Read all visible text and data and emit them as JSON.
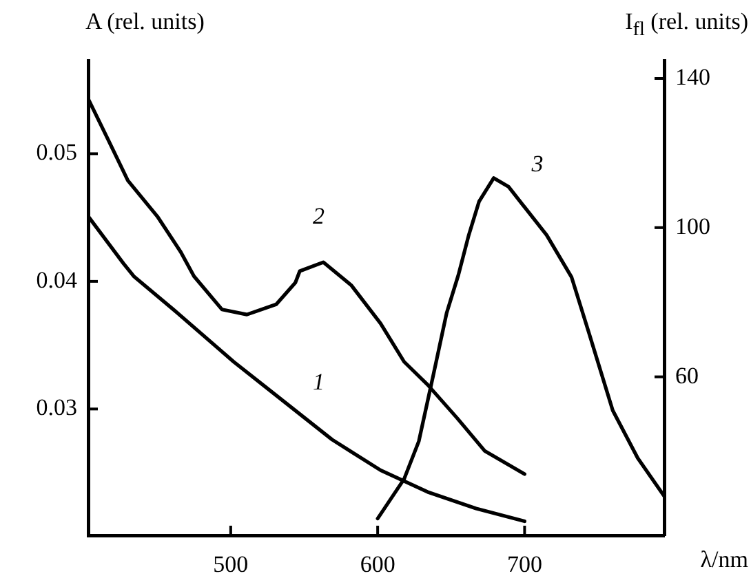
{
  "chart_data": {
    "type": "line",
    "xlabel": "λ/nm",
    "ylabel": "A (rel. units)",
    "y2label": "I$_{fl}$ (rel. units)",
    "xlim": [
      403,
      795
    ],
    "xticks": [
      500,
      600,
      700
    ],
    "ylim": [
      0.0201,
      0.0573
    ],
    "yticks": [
      0.03,
      0.04,
      0.05
    ],
    "y2lim": [
      17.5,
      144.8
    ],
    "y2ticks": [
      60,
      100,
      140
    ],
    "grid": false,
    "legend": false,
    "marker": "none",
    "line_style": "solid",
    "series": [
      {
        "name": "1",
        "color": "#000000",
        "x": [
          403,
          427,
          434,
          463,
          502,
          524,
          569,
          602,
          634,
          667,
          700
        ],
        "values": [
          0.0451,
          0.0414,
          0.0404,
          0.0376,
          0.0337,
          0.0317,
          0.0276,
          0.0252,
          0.0235,
          0.0222,
          0.0212
        ]
      },
      {
        "name": "2",
        "color": "#000000",
        "x": [
          403,
          417,
          430,
          450,
          466,
          475,
          494,
          511,
          531,
          544,
          547,
          563,
          582,
          602,
          618,
          634,
          654,
          673,
          700
        ],
        "values": [
          0.0543,
          0.051,
          0.0479,
          0.0451,
          0.0423,
          0.0404,
          0.0378,
          0.0374,
          0.0382,
          0.0399,
          0.0408,
          0.0415,
          0.0397,
          0.0367,
          0.0337,
          0.0319,
          0.0293,
          0.0267,
          0.0249
        ]
      },
      {
        "name": "3",
        "color": "#000000",
        "axis": "y2",
        "x": [
          600,
          618,
          628,
          638,
          647,
          655,
          662,
          669,
          679,
          689,
          699,
          715,
          732,
          744,
          760,
          777,
          795
        ],
        "values": [
          22,
          32.6,
          42.7,
          60.7,
          77.2,
          87.4,
          98,
          107,
          113.3,
          111,
          106,
          98,
          86.7,
          71.5,
          51,
          38.2,
          28
        ]
      }
    ]
  }
}
